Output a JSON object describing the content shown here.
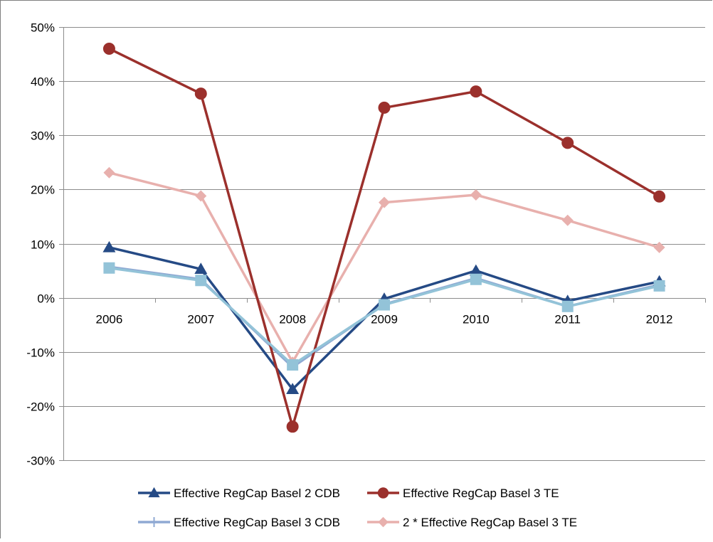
{
  "chart_data": {
    "type": "line",
    "categories": [
      "2006",
      "2007",
      "2008",
      "2009",
      "2010",
      "2011",
      "2012"
    ],
    "ylim": [
      -0.3,
      0.5
    ],
    "yticks": [
      0.5,
      0.4,
      0.3,
      0.2,
      0.1,
      0.0,
      -0.1,
      -0.2,
      -0.3
    ],
    "ytick_labels": [
      "50%",
      "40%",
      "30%",
      "20%",
      "10%",
      "0%",
      "-10%",
      "-20%",
      "-30%"
    ],
    "grid": "horizontal",
    "legend": "bottom",
    "series": [
      {
        "name": "Effective RegCap Basel 2 CDB",
        "marker": "triangle",
        "color": "#254a85",
        "values": [
          0.093,
          0.053,
          -0.169,
          -0.002,
          0.05,
          -0.006,
          0.03
        ]
      },
      {
        "name": "Effective RegCap Basel 3 TE",
        "marker": "circle",
        "color": "#9b302c",
        "values": [
          0.46,
          0.377,
          -0.238,
          0.351,
          0.381,
          0.286,
          0.187
        ]
      },
      {
        "name": "Effective RegCap Basel 3 CDB",
        "marker": "square",
        "color": "#8fa9d3",
        "values": [
          0.057,
          0.034,
          -0.128,
          -0.012,
          0.036,
          -0.016,
          0.024
        ]
      },
      {
        "name": "2 * Effective RegCap Basel 3 TE",
        "marker": "diamond",
        "color": "#e8b0ad",
        "values": [
          0.231,
          0.188,
          -0.119,
          0.176,
          0.19,
          0.143,
          0.093
        ]
      }
    ],
    "series_overlay": {
      "marker": "square",
      "color": "#93c3d8",
      "values": [
        0.055,
        0.032,
        -0.124,
        -0.013,
        0.034,
        -0.016,
        0.022
      ]
    }
  }
}
